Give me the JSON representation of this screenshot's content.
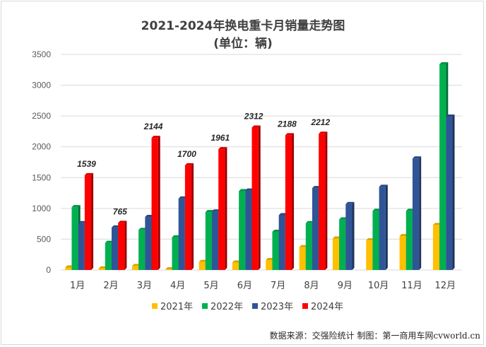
{
  "chart_data": {
    "type": "bar",
    "title": "2021-2024年换电重卡月销量走势图",
    "subtitle": "(单位：辆)",
    "categories": [
      "1月",
      "2月",
      "3月",
      "4月",
      "5月",
      "6月",
      "7月",
      "8月",
      "9月",
      "10月",
      "11月",
      "12月"
    ],
    "ylim": [
      0,
      3500
    ],
    "yticks": [
      0,
      500,
      1000,
      1500,
      2000,
      2500,
      3000,
      3500
    ],
    "grid": true,
    "legend_position": "bottom",
    "series": [
      {
        "name": "2021年",
        "color": "#ffc000",
        "values": [
          40,
          25,
          65,
          10,
          130,
          120,
          160,
          370,
          510,
          480,
          550,
          730
        ]
      },
      {
        "name": "2022年",
        "color": "#00b050",
        "values": [
          1020,
          440,
          650,
          530,
          940,
          1280,
          620,
          760,
          820,
          960,
          960,
          3340
        ]
      },
      {
        "name": "2023年",
        "color": "#2f5597",
        "values": [
          760,
          690,
          860,
          1160,
          950,
          1290,
          890,
          1330,
          1070,
          1350,
          1810,
          2490
        ]
      },
      {
        "name": "2024年",
        "color": "#ff0000",
        "values": [
          1539,
          765,
          2144,
          1700,
          1961,
          2312,
          2188,
          2212,
          null,
          null,
          null,
          null
        ]
      }
    ],
    "data_labels": {
      "series": "2024年",
      "values": [
        "1539",
        "765",
        "2144",
        "1700",
        "1961",
        "2312",
        "2188",
        "2212"
      ]
    }
  },
  "source": "数据来源：交强险统计  制图：第一商用车网cvworld.cn"
}
